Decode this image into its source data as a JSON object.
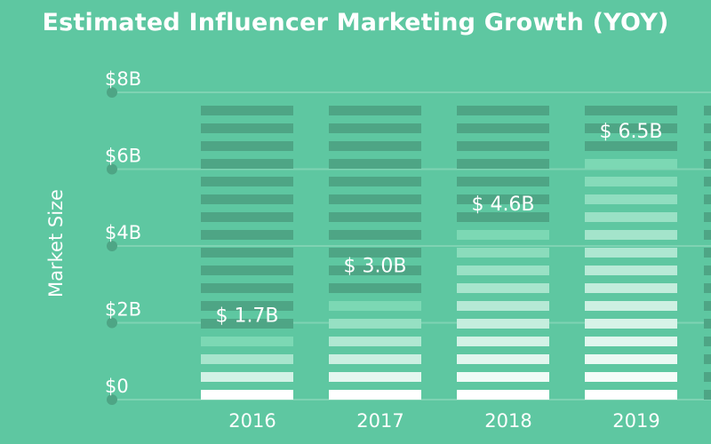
{
  "chart_data": {
    "type": "bar",
    "title": "Estimated Influencer Marketing Growth (YOY)",
    "ylabel": "Market Size",
    "xlabel": "",
    "categories": [
      "2016",
      "2017",
      "2018",
      "2019"
    ],
    "values": [
      1.7,
      3.0,
      4.6,
      6.5
    ],
    "value_labels": [
      "$ 1.7B",
      "$ 3.0B",
      "$ 4.6B",
      "$ 6.5B"
    ],
    "ylim": [
      0,
      8
    ],
    "yticks": [
      0,
      2,
      4,
      6,
      8
    ],
    "ytick_labels": [
      "$0",
      "$2B",
      "$4B",
      "$6B",
      "$8B"
    ],
    "grid": true,
    "colors": {
      "background": "#5ec7a1",
      "track": "#4ea585",
      "fill_bottom": "#ffffff",
      "fill_top": "#7cd8b4",
      "grid": "#7fd3b3",
      "tick_dot": "#4ea585"
    }
  }
}
